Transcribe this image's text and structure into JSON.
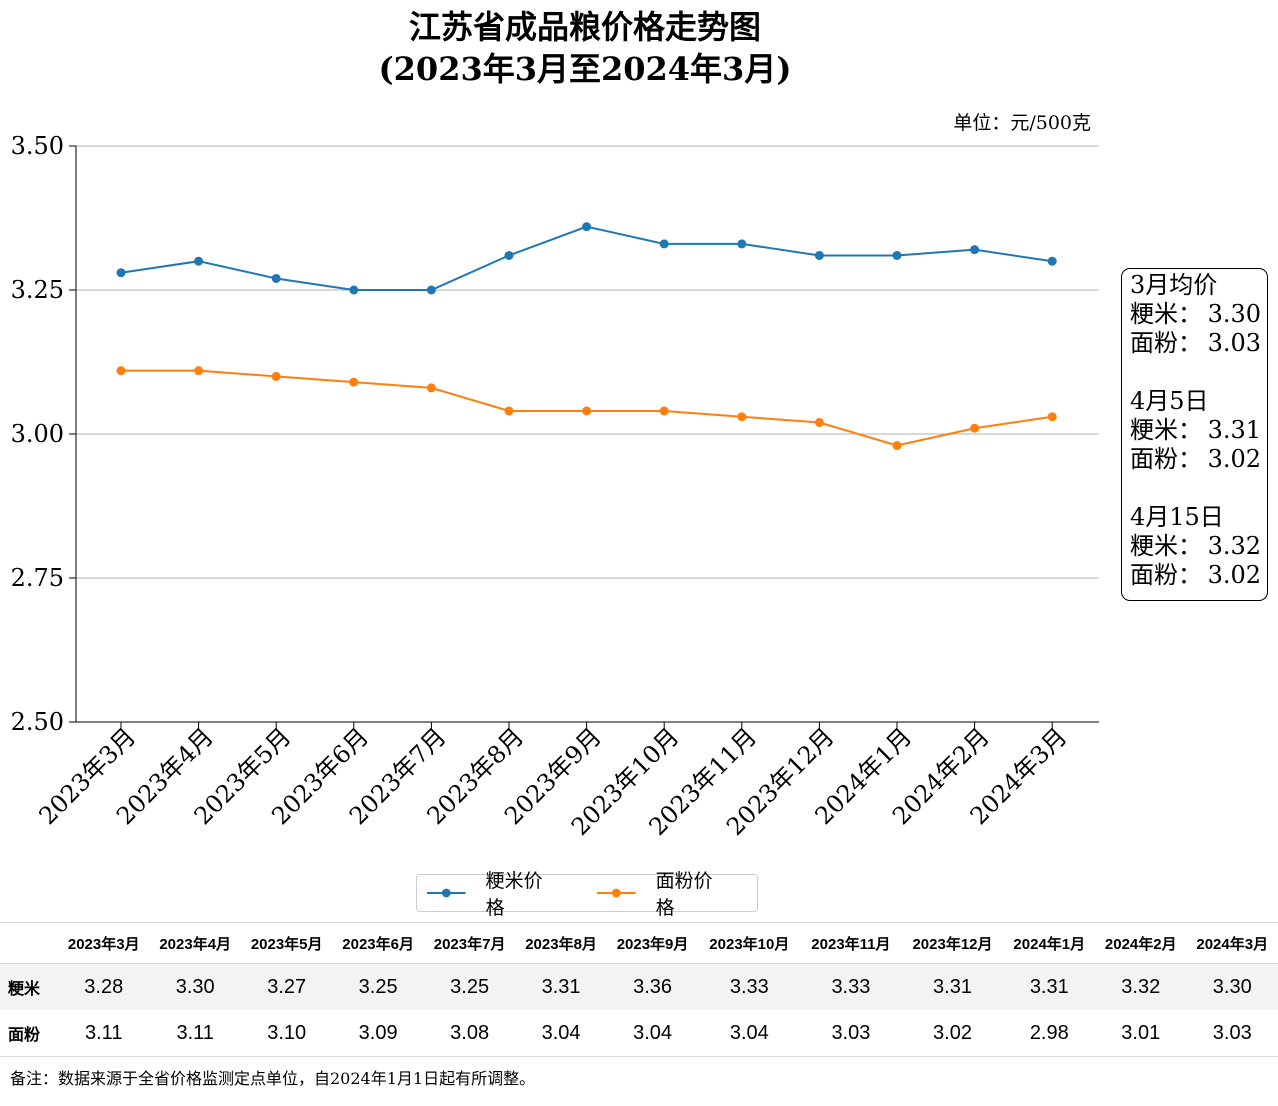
{
  "title_line1": "江苏省成品粮价格走势图",
  "title_line2": "(2023年3月至2024年3月)",
  "unit": "单位：元/500克",
  "chart_data": {
    "type": "line",
    "categories": [
      "2023年3月",
      "2023年4月",
      "2023年5月",
      "2023年6月",
      "2023年7月",
      "2023年8月",
      "2023年9月",
      "2023年10月",
      "2023年11月",
      "2023年12月",
      "2024年1月",
      "2024年2月",
      "2024年3月"
    ],
    "series": [
      {
        "name": "粳米价格",
        "color": "#1f77b4",
        "values": [
          3.28,
          3.3,
          3.27,
          3.25,
          3.25,
          3.31,
          3.36,
          3.33,
          3.33,
          3.31,
          3.31,
          3.32,
          3.3
        ]
      },
      {
        "name": "面粉价格",
        "color": "#ff7f0e",
        "values": [
          3.11,
          3.11,
          3.1,
          3.09,
          3.08,
          3.04,
          3.04,
          3.04,
          3.03,
          3.02,
          2.98,
          3.01,
          3.03
        ]
      }
    ],
    "ylim": [
      2.5,
      3.5
    ],
    "yticks": [
      "2.50",
      "2.75",
      "3.00",
      "3.25",
      "3.50"
    ],
    "grid": "horizontal",
    "legend_position": "bottom"
  },
  "notes": [
    {
      "heading": "3月均价",
      "rows": [
        {
          "label": "粳米：",
          "value": "3.30"
        },
        {
          "label": "面粉：",
          "value": "3.03"
        }
      ]
    },
    {
      "heading": "4月5日",
      "rows": [
        {
          "label": "粳米：",
          "value": "3.31"
        },
        {
          "label": "面粉：",
          "value": "3.02"
        }
      ]
    },
    {
      "heading": "4月15日",
      "rows": [
        {
          "label": "粳米：",
          "value": "3.32"
        },
        {
          "label": "面粉：",
          "value": "3.02"
        }
      ]
    }
  ],
  "legend": [
    {
      "label": "粳米价格",
      "color": "#1f77b4"
    },
    {
      "label": "面粉价格",
      "color": "#ff7f0e"
    }
  ],
  "table": {
    "headers": [
      "2023年3月",
      "2023年4月",
      "2023年5月",
      "2023年6月",
      "2023年7月",
      "2023年8月",
      "2023年9月",
      "2023年10月",
      "2023年11月",
      "2023年12月",
      "2024年1月",
      "2024年2月",
      "2024年3月"
    ],
    "rows": [
      {
        "label": "粳米",
        "values": [
          "3.28",
          "3.30",
          "3.27",
          "3.25",
          "3.25",
          "3.31",
          "3.36",
          "3.33",
          "3.33",
          "3.31",
          "3.31",
          "3.32",
          "3.30"
        ]
      },
      {
        "label": "面粉",
        "values": [
          "3.11",
          "3.11",
          "3.10",
          "3.09",
          "3.08",
          "3.04",
          "3.04",
          "3.04",
          "3.03",
          "3.02",
          "2.98",
          "3.01",
          "3.03"
        ]
      }
    ]
  },
  "footnote": "备注：数据来源于全省价格监测定点单位，自2024年1月1日起有所调整。"
}
